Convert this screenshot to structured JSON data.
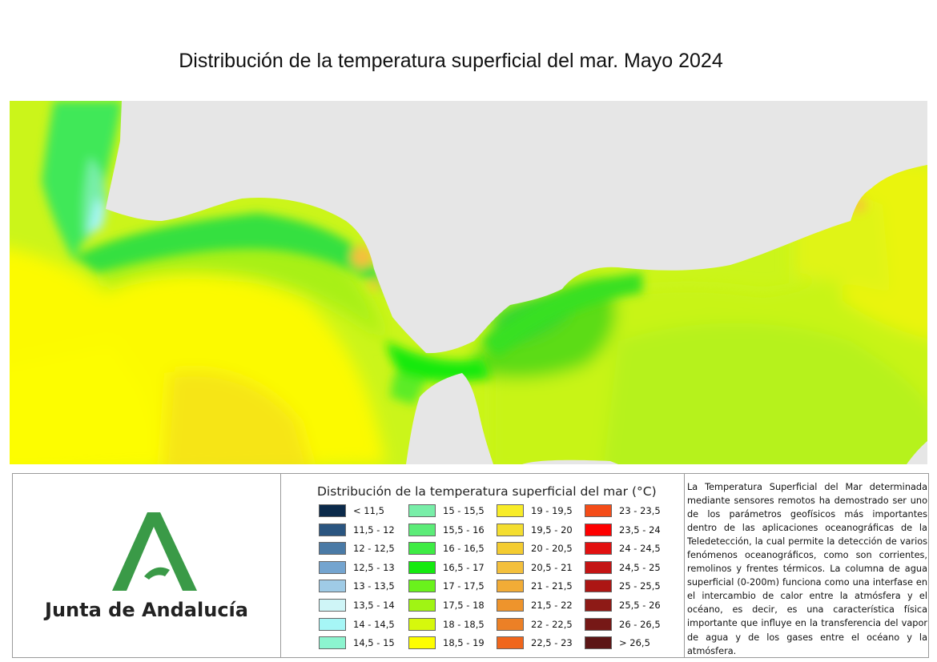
{
  "title": "Distribución de la temperatura superficial del mar. Mayo 2024",
  "map": {
    "land_color": "#e6e6e6",
    "regions": [
      "Atlantic coast (Gulf of Cádiz)",
      "Strait of Gibraltar",
      "Alboran Sea"
    ]
  },
  "logo": {
    "text": "Junta de Andalucía",
    "color": "#3a9a47"
  },
  "legend": {
    "title": "Distribución de la temperatura superficial del mar (°C)",
    "items": [
      {
        "label": "< 11,5",
        "color": "#0b2a4a"
      },
      {
        "label": "11,5 - 12",
        "color": "#2a5580"
      },
      {
        "label": "12 - 12,5",
        "color": "#4a7aa6"
      },
      {
        "label": "12,5 - 13",
        "color": "#74a4cf"
      },
      {
        "label": "13 - 13,5",
        "color": "#9fcbe6"
      },
      {
        "label": "13,5 - 14",
        "color": "#cff5f7"
      },
      {
        "label": "14 - 14,5",
        "color": "#a6f6f6"
      },
      {
        "label": "14,5 - 15",
        "color": "#8cf4cf"
      },
      {
        "label": "15 - 15,5",
        "color": "#78eea8"
      },
      {
        "label": "15,5 - 16",
        "color": "#5cec78"
      },
      {
        "label": "16 - 16,5",
        "color": "#3eec44"
      },
      {
        "label": "16,5 - 17",
        "color": "#14ea10"
      },
      {
        "label": "17 - 17,5",
        "color": "#6af21c"
      },
      {
        "label": "17,5 - 18",
        "color": "#a0f414"
      },
      {
        "label": "18 - 18,5",
        "color": "#d6f80c"
      },
      {
        "label": "18,5 - 19",
        "color": "#fefe00"
      },
      {
        "label": "19 - 19,5",
        "color": "#f8ec28"
      },
      {
        "label": "19,5 - 20",
        "color": "#f4de30"
      },
      {
        "label": "20 - 20,5",
        "color": "#f4cc30"
      },
      {
        "label": "20,5 - 21",
        "color": "#f4c03c"
      },
      {
        "label": "21 - 21,5",
        "color": "#f2ac36"
      },
      {
        "label": "21,5 - 22",
        "color": "#ee942c"
      },
      {
        "label": "22 - 22,5",
        "color": "#ec8026"
      },
      {
        "label": "22,5 - 23",
        "color": "#f0661c"
      },
      {
        "label": "23 - 23,5",
        "color": "#f44c18"
      },
      {
        "label": "23,5 - 24",
        "color": "#fe0000"
      },
      {
        "label": "24 - 24,5",
        "color": "#e21010"
      },
      {
        "label": "24,5 - 25",
        "color": "#c41414"
      },
      {
        "label": "25 - 25,5",
        "color": "#ac1614"
      },
      {
        "label": "25,5 - 26",
        "color": "#8e1a16"
      },
      {
        "label": "26 - 26,5",
        "color": "#761816"
      },
      {
        "label": "> 26,5",
        "color": "#5c1616"
      }
    ]
  },
  "description": "La Temperatura Superficial del Mar determinada mediante sensores remotos ha demostrado ser uno de los parámetros geofísicos más importantes dentro de las aplicaciones oceanográficas de la Teledetección, la cual permite la detección de varios fenómenos oceanográficos, como son corrientes, remolinos y frentes térmicos. La columna de agua superficial (0-200m) funciona como una interfase en el intercambio de calor entre la atmósfera y el océano, es decir, es una característica física importante que influye en la transferencia del vapor de agua y de los gases entre el océano y la atmósfera."
}
